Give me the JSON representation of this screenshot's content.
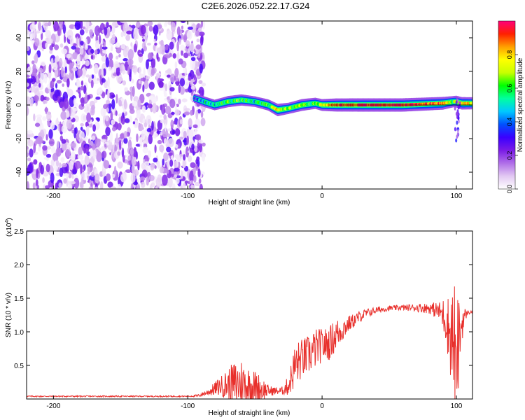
{
  "title": "C2E6.2026.052.22.17.G24",
  "chart_data": [
    {
      "type": "heatmap",
      "xlabel": "Height of straight line (km)",
      "ylabel": "Frequency (Hz)",
      "xlim": [
        -220,
        112
      ],
      "ylim": [
        -50,
        50
      ],
      "xticks": [
        -200,
        -100,
        0,
        100
      ],
      "yticks": [
        -40,
        -20,
        0,
        20,
        40
      ],
      "noise_region_x": [
        -220,
        -92
      ],
      "signal_track": {
        "x": [
          -95,
          -88,
          -80,
          -70,
          -60,
          -50,
          -40,
          -33,
          -25,
          -15,
          -5,
          0,
          10,
          30,
          60,
          90,
          98,
          100,
          104,
          112
        ],
        "frequency": [
          4,
          2,
          0,
          2,
          3,
          2,
          0,
          -3,
          -2,
          0,
          1,
          0,
          0,
          0,
          0,
          1,
          2,
          2,
          1,
          1
        ],
        "amplitude": [
          0.3,
          0.5,
          0.5,
          0.6,
          0.6,
          0.5,
          0.6,
          0.8,
          0.6,
          0.7,
          0.6,
          0.7,
          0.9,
          0.95,
          0.95,
          0.85,
          0.6,
          0.7,
          0.8,
          0.75
        ]
      },
      "colorbar": {
        "label": "Normalized spectral amplitude",
        "ticks": [
          0.0,
          0.2,
          0.4,
          0.6,
          0.8
        ],
        "range": [
          0,
          1
        ],
        "colors": [
          "#ffffff",
          "#e2c8f2",
          "#b06ee8",
          "#7a1be6",
          "#3a00ff",
          "#0050ff",
          "#00c8ff",
          "#00ffa0",
          "#00ff00",
          "#c8ff00",
          "#ffff00",
          "#ffa000",
          "#ff2000",
          "#ff007a"
        ]
      },
      "grid": false
    },
    {
      "type": "line",
      "xlabel": "Height of straight line (km)",
      "ylabel": "SNR (10 * v/v)",
      "scale_label": "(x10",
      "scale_exp": "4",
      "scale_close": ")",
      "xlim": [
        -220,
        112
      ],
      "ylim": [
        0,
        2.5
      ],
      "xticks": [
        -200,
        -100,
        0,
        100
      ],
      "yticks": [
        0.5,
        1.0,
        1.5,
        2.0,
        2.5
      ],
      "envelope": {
        "x": [
          -220,
          -100,
          -92,
          -85,
          -75,
          -65,
          -60,
          -55,
          -50,
          -45,
          -40,
          -35,
          -30,
          -25,
          -20,
          -15,
          -10,
          -5,
          0,
          5,
          10,
          20,
          30,
          40,
          50,
          60,
          70,
          80,
          88,
          92,
          95,
          97,
          99,
          100,
          101,
          103,
          105,
          108,
          112
        ],
        "base": [
          0.04,
          0.04,
          0.05,
          0.1,
          0.2,
          0.22,
          0.22,
          0.2,
          0.18,
          0.15,
          0.12,
          0.12,
          0.12,
          0.2,
          0.5,
          0.6,
          0.65,
          0.75,
          0.8,
          0.82,
          0.95,
          1.12,
          1.25,
          1.32,
          1.35,
          1.36,
          1.36,
          1.35,
          1.3,
          1.2,
          1.0,
          0.9,
          0.7,
          0.35,
          0.7,
          1.0,
          1.2,
          1.28,
          1.3
        ],
        "spread": [
          0.01,
          0.01,
          0.02,
          0.05,
          0.15,
          0.35,
          0.4,
          0.3,
          0.25,
          0.2,
          0.08,
          0.06,
          0.06,
          0.15,
          0.35,
          0.3,
          0.3,
          0.3,
          0.25,
          0.25,
          0.25,
          0.12,
          0.08,
          0.05,
          0.04,
          0.04,
          0.06,
          0.08,
          0.15,
          0.35,
          0.55,
          0.85,
          1.1,
          0.4,
          0.8,
          0.5,
          0.2,
          0.03,
          0.02
        ]
      },
      "color": "#e8302c",
      "grid": false
    }
  ]
}
